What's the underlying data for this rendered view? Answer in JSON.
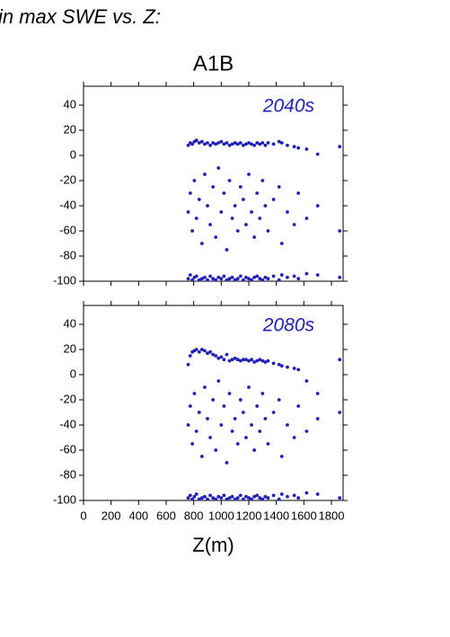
{
  "title": "in max SWE vs. Z:",
  "chart_data": [
    {
      "type": "scatter",
      "title": "A1B",
      "annotation": "2040s",
      "color": "#2020b8",
      "xlim": [
        0,
        1885
      ],
      "ylim": [
        -100,
        55
      ],
      "xticks": [
        0,
        200,
        400,
        600,
        800,
        1000,
        1200,
        1400,
        1600,
        1800
      ],
      "yticks": [
        40,
        20,
        0,
        -20,
        -40,
        -60,
        -80,
        -100
      ],
      "x": [
        760,
        775,
        790,
        805,
        820,
        840,
        860,
        880,
        900,
        920,
        940,
        960,
        980,
        1000,
        1020,
        1040,
        1060,
        1080,
        1100,
        1120,
        1140,
        1160,
        1180,
        1200,
        1220,
        1240,
        1260,
        1280,
        1300,
        1320,
        1340,
        1380,
        1420,
        1440,
        1480,
        1530,
        1560,
        1620,
        1700,
        1860
      ],
      "series": [
        {
          "values": [
            8,
            10,
            9,
            11,
            12,
            10,
            11,
            9,
            10,
            8,
            10,
            9,
            10,
            11,
            9,
            10,
            8,
            9,
            10,
            9,
            10,
            8,
            9,
            10,
            9,
            8,
            10,
            9,
            10,
            8,
            10,
            9,
            11,
            10,
            8,
            7,
            6,
            5,
            1,
            7
          ]
        },
        {
          "values": [
            -45,
            -30,
            -60,
            -20,
            -50,
            -35,
            -70,
            -15,
            -40,
            -55,
            -25,
            -65,
            -10,
            -45,
            -30,
            -75,
            -20,
            -50,
            -40,
            -60,
            -25,
            -35,
            -55,
            -15,
            -45,
            -65,
            -30,
            -50,
            -20,
            -40,
            -60,
            -35,
            -25,
            -70,
            -45,
            -55,
            -30,
            -50,
            -40,
            -60
          ]
        },
        {
          "values": [
            -98,
            -95,
            -99,
            -97,
            -96,
            -99,
            -98,
            -97,
            -99,
            -96,
            -98,
            -99,
            -97,
            -98,
            -96,
            -99,
            -98,
            -97,
            -99,
            -98,
            -96,
            -99,
            -97,
            -98,
            -99,
            -97,
            -96,
            -98,
            -99,
            -97,
            -98,
            -96,
            -99,
            -95,
            -97,
            -96,
            -98,
            -94,
            -95,
            -97
          ]
        }
      ]
    },
    {
      "type": "scatter",
      "annotation": "2080s",
      "color": "#2020b8",
      "xlabel": "Z(m)",
      "xlim": [
        0,
        1885
      ],
      "ylim": [
        -100,
        55
      ],
      "xticks": [
        0,
        200,
        400,
        600,
        800,
        1000,
        1200,
        1400,
        1600,
        1800
      ],
      "yticks": [
        40,
        20,
        0,
        -20,
        -40,
        -60,
        -80,
        -100
      ],
      "x": [
        760,
        775,
        790,
        805,
        820,
        840,
        860,
        880,
        900,
        920,
        940,
        960,
        980,
        1000,
        1020,
        1040,
        1060,
        1080,
        1100,
        1120,
        1140,
        1160,
        1180,
        1200,
        1220,
        1240,
        1260,
        1280,
        1300,
        1320,
        1340,
        1380,
        1420,
        1440,
        1480,
        1530,
        1560,
        1620,
        1700,
        1860
      ],
      "series": [
        {
          "values": [
            8,
            15,
            18,
            19,
            20,
            18,
            20,
            19,
            17,
            18,
            16,
            15,
            13,
            14,
            12,
            16,
            11,
            12,
            13,
            12,
            11,
            12,
            12,
            11,
            12,
            10,
            11,
            12,
            11,
            10,
            11,
            9,
            8,
            7,
            6,
            5,
            4,
            -5,
            -15,
            12
          ]
        },
        {
          "values": [
            -40,
            -25,
            -55,
            -15,
            -45,
            -30,
            -65,
            -10,
            -35,
            -50,
            -20,
            -60,
            -5,
            -40,
            -25,
            -70,
            -15,
            -45,
            -35,
            -55,
            -20,
            -30,
            -50,
            -10,
            -40,
            -60,
            -25,
            -45,
            -15,
            -35,
            -55,
            -30,
            -20,
            -65,
            -40,
            -50,
            -25,
            -45,
            -35,
            -30
          ]
        },
        {
          "values": [
            -98,
            -96,
            -99,
            -97,
            -95,
            -99,
            -98,
            -97,
            -99,
            -96,
            -98,
            -99,
            -97,
            -98,
            -96,
            -99,
            -98,
            -97,
            -99,
            -98,
            -96,
            -99,
            -97,
            -98,
            -99,
            -97,
            -96,
            -98,
            -99,
            -97,
            -98,
            -96,
            -99,
            -95,
            -97,
            -96,
            -98,
            -94,
            -95,
            -98
          ]
        }
      ]
    }
  ]
}
